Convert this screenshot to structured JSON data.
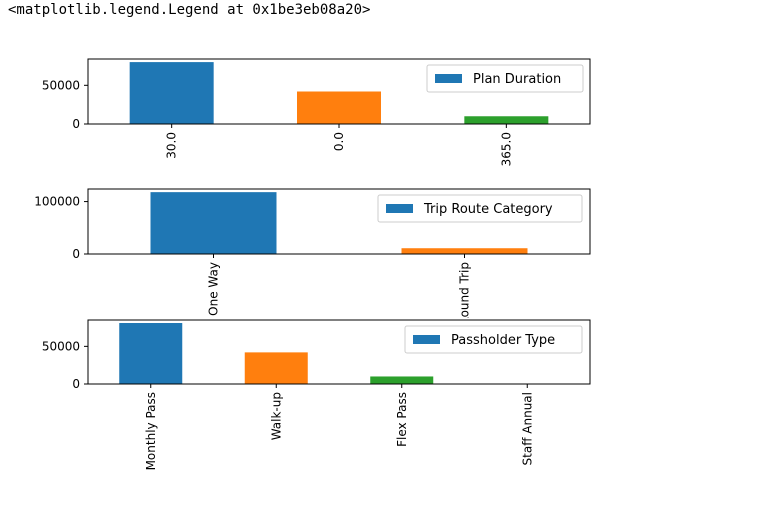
{
  "output_text": "<matplotlib.legend.Legend at 0x1be3eb08a20>",
  "colors": {
    "c0": "#1f77b4",
    "c1": "#ff7f0e",
    "c2": "#2ca02c",
    "c3": "#d62728"
  },
  "chart_data": [
    {
      "type": "bar",
      "categories": [
        "30.0",
        "0.0",
        "365.0"
      ],
      "values": [
        80000,
        42000,
        10000
      ],
      "ylim": [
        0,
        84000
      ],
      "yticks": [
        0,
        50000
      ],
      "ytick_labels": [
        "0",
        "50000"
      ],
      "legend": [
        "Plan Duration"
      ],
      "legend_position": "upper right"
    },
    {
      "type": "bar",
      "categories": [
        "One Way",
        "Round Trip"
      ],
      "values": [
        118000,
        11000
      ],
      "ylim": [
        0,
        124000
      ],
      "yticks": [
        0,
        100000
      ],
      "ytick_labels": [
        "0",
        "100000"
      ],
      "legend": [
        "Trip Route Category"
      ],
      "legend_position": "upper right"
    },
    {
      "type": "bar",
      "categories": [
        "Monthly Pass",
        "Walk-up",
        "Flex Pass",
        "Staff Annual"
      ],
      "values": [
        81000,
        42000,
        10000,
        400
      ],
      "ylim": [
        0,
        85000
      ],
      "yticks": [
        0,
        50000
      ],
      "ytick_labels": [
        "0",
        "50000"
      ],
      "legend": [
        "Passholder Type"
      ],
      "legend_position": "upper right"
    }
  ]
}
